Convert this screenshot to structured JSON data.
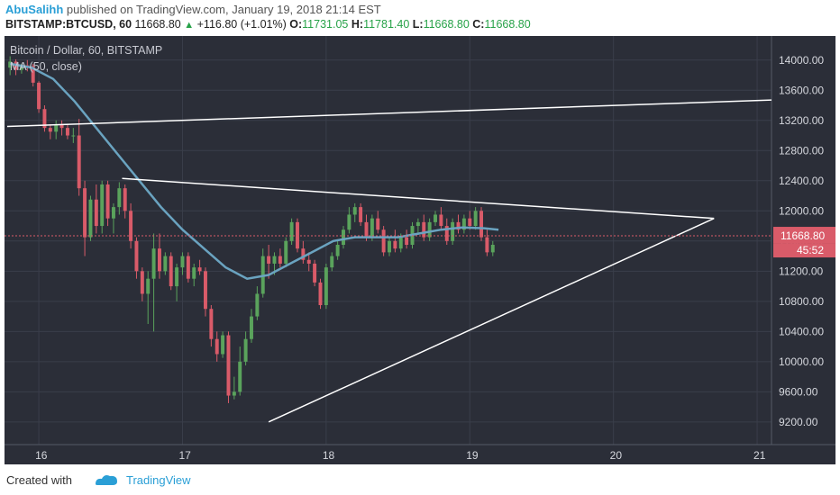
{
  "header": {
    "author": "AbuSalihh",
    "published_text": "published on TradingView.com, January 19, 2018 21:14 EST",
    "symbol": "BITSTAMP:BTCUSD, 60",
    "last": "11668.80",
    "change": "+116.80 (+1.01%)",
    "o_label": "O:",
    "o_value": "11731.05",
    "h_label": "H:",
    "h_value": "11781.40",
    "l_label": "L:",
    "l_value": "11668.80",
    "c_label": "C:",
    "c_value": "11668.80"
  },
  "legend": {
    "title": "Bitcoin / Dollar, 60, BITSTAMP",
    "indicator": "MA (50, close)"
  },
  "footer": {
    "created_with": "Created with",
    "brand": "TradingView"
  },
  "colors": {
    "background": "#2b2e38",
    "bull": "#5aa35c",
    "bear": "#d95b69",
    "ma": "#6aa3c0",
    "trendline": "#ffffff",
    "price_label": "#d95b69"
  },
  "chart_data": {
    "type": "candlestick",
    "y_axis_ticks": [
      "14000.00",
      "13600.00",
      "13200.00",
      "12800.00",
      "12400.00",
      "12000.00",
      "11600.00",
      "11200.00",
      "10800.00",
      "10400.00",
      "10000.00",
      "9600.00",
      "9200.00"
    ],
    "x_axis_ticks": [
      "16",
      "17",
      "18",
      "19",
      "20",
      "21"
    ],
    "ylim": [
      8900,
      14200
    ],
    "current_price_label": "11668.80",
    "countdown_label": "45:52",
    "candles": [
      {
        "x": 15.8,
        "o": 13900,
        "h": 14050,
        "l": 13800,
        "c": 13980
      },
      {
        "x": 15.84,
        "o": 13980,
        "h": 14010,
        "l": 13800,
        "c": 13870
      },
      {
        "x": 15.88,
        "o": 13870,
        "h": 13950,
        "l": 13820,
        "c": 13930
      },
      {
        "x": 15.92,
        "o": 13930,
        "h": 14000,
        "l": 13850,
        "c": 13920
      },
      {
        "x": 15.96,
        "o": 13920,
        "h": 13950,
        "l": 13650,
        "c": 13700
      },
      {
        "x": 16.0,
        "o": 13700,
        "h": 13720,
        "l": 13300,
        "c": 13350
      },
      {
        "x": 16.04,
        "o": 13350,
        "h": 13400,
        "l": 13050,
        "c": 13100
      },
      {
        "x": 16.08,
        "o": 13100,
        "h": 13150,
        "l": 12950,
        "c": 13050
      },
      {
        "x": 16.12,
        "o": 13050,
        "h": 13200,
        "l": 12950,
        "c": 13150
      },
      {
        "x": 16.16,
        "o": 13150,
        "h": 13200,
        "l": 13000,
        "c": 13100
      },
      {
        "x": 16.2,
        "o": 13100,
        "h": 13150,
        "l": 12950,
        "c": 13000
      },
      {
        "x": 16.24,
        "o": 13000,
        "h": 13100,
        "l": 12900,
        "c": 13000
      },
      {
        "x": 16.28,
        "o": 13000,
        "h": 13220,
        "l": 12200,
        "c": 12300
      },
      {
        "x": 16.32,
        "o": 12300,
        "h": 12400,
        "l": 11400,
        "c": 11650
      },
      {
        "x": 16.36,
        "o": 11650,
        "h": 12200,
        "l": 11600,
        "c": 12150
      },
      {
        "x": 16.4,
        "o": 12150,
        "h": 12350,
        "l": 11700,
        "c": 11800
      },
      {
        "x": 16.44,
        "o": 11800,
        "h": 12400,
        "l": 11700,
        "c": 12350
      },
      {
        "x": 16.48,
        "o": 12350,
        "h": 12400,
        "l": 11800,
        "c": 11900
      },
      {
        "x": 16.52,
        "o": 11900,
        "h": 12100,
        "l": 11700,
        "c": 12050
      },
      {
        "x": 16.56,
        "o": 12050,
        "h": 12380,
        "l": 11950,
        "c": 12300
      },
      {
        "x": 16.6,
        "o": 12300,
        "h": 12350,
        "l": 11900,
        "c": 12000
      },
      {
        "x": 16.64,
        "o": 12000,
        "h": 12100,
        "l": 11500,
        "c": 11600
      },
      {
        "x": 16.68,
        "o": 11600,
        "h": 11650,
        "l": 11100,
        "c": 11200
      },
      {
        "x": 16.72,
        "o": 11200,
        "h": 11250,
        "l": 10800,
        "c": 10900
      },
      {
        "x": 16.76,
        "o": 10900,
        "h": 11200,
        "l": 10500,
        "c": 11100
      },
      {
        "x": 16.8,
        "o": 11100,
        "h": 11700,
        "l": 10400,
        "c": 11500
      },
      {
        "x": 16.84,
        "o": 11500,
        "h": 11700,
        "l": 11100,
        "c": 11200
      },
      {
        "x": 16.88,
        "o": 11200,
        "h": 11450,
        "l": 11150,
        "c": 11400
      },
      {
        "x": 16.92,
        "o": 11400,
        "h": 11450,
        "l": 10950,
        "c": 11000
      },
      {
        "x": 16.96,
        "o": 11000,
        "h": 11300,
        "l": 10800,
        "c": 11250
      },
      {
        "x": 17.0,
        "o": 11250,
        "h": 11450,
        "l": 11150,
        "c": 11400
      },
      {
        "x": 17.04,
        "o": 11400,
        "h": 11450,
        "l": 11050,
        "c": 11100
      },
      {
        "x": 17.08,
        "o": 11100,
        "h": 11300,
        "l": 11000,
        "c": 11250
      },
      {
        "x": 17.12,
        "o": 11250,
        "h": 11350,
        "l": 11150,
        "c": 11200
      },
      {
        "x": 17.16,
        "o": 11200,
        "h": 11250,
        "l": 10600,
        "c": 10700
      },
      {
        "x": 17.2,
        "o": 10700,
        "h": 10750,
        "l": 10200,
        "c": 10300
      },
      {
        "x": 17.24,
        "o": 10300,
        "h": 10400,
        "l": 10000,
        "c": 10100
      },
      {
        "x": 17.28,
        "o": 10100,
        "h": 10400,
        "l": 10050,
        "c": 10350
      },
      {
        "x": 17.32,
        "o": 10350,
        "h": 10400,
        "l": 9450,
        "c": 9550
      },
      {
        "x": 17.36,
        "o": 9550,
        "h": 9800,
        "l": 9500,
        "c": 9600
      },
      {
        "x": 17.4,
        "o": 9600,
        "h": 10200,
        "l": 9550,
        "c": 10000
      },
      {
        "x": 17.44,
        "o": 10000,
        "h": 10400,
        "l": 9950,
        "c": 10300
      },
      {
        "x": 17.48,
        "o": 10300,
        "h": 10700,
        "l": 10250,
        "c": 10600
      },
      {
        "x": 17.52,
        "o": 10600,
        "h": 11000,
        "l": 10550,
        "c": 10900
      },
      {
        "x": 17.56,
        "o": 10900,
        "h": 11500,
        "l": 10850,
        "c": 11400
      },
      {
        "x": 17.6,
        "o": 11400,
        "h": 11550,
        "l": 11100,
        "c": 11300
      },
      {
        "x": 17.64,
        "o": 11300,
        "h": 11450,
        "l": 11150,
        "c": 11400
      },
      {
        "x": 17.68,
        "o": 11400,
        "h": 11500,
        "l": 11250,
        "c": 11300
      },
      {
        "x": 17.72,
        "o": 11300,
        "h": 11650,
        "l": 11250,
        "c": 11600
      },
      {
        "x": 17.76,
        "o": 11600,
        "h": 11900,
        "l": 11550,
        "c": 11850
      },
      {
        "x": 17.8,
        "o": 11850,
        "h": 11900,
        "l": 11450,
        "c": 11500
      },
      {
        "x": 17.84,
        "o": 11500,
        "h": 11600,
        "l": 11300,
        "c": 11350
      },
      {
        "x": 17.88,
        "o": 11350,
        "h": 11450,
        "l": 11200,
        "c": 11300
      },
      {
        "x": 17.92,
        "o": 11300,
        "h": 11350,
        "l": 11000,
        "c": 11050
      },
      {
        "x": 17.96,
        "o": 11050,
        "h": 11100,
        "l": 10700,
        "c": 10750
      },
      {
        "x": 18.0,
        "o": 10750,
        "h": 11300,
        "l": 10700,
        "c": 11250
      },
      {
        "x": 18.04,
        "o": 11250,
        "h": 11450,
        "l": 11200,
        "c": 11400
      },
      {
        "x": 18.08,
        "o": 11400,
        "h": 11600,
        "l": 11350,
        "c": 11550
      },
      {
        "x": 18.12,
        "o": 11550,
        "h": 11800,
        "l": 11500,
        "c": 11750
      },
      {
        "x": 18.16,
        "o": 11750,
        "h": 12050,
        "l": 11700,
        "c": 11950
      },
      {
        "x": 18.2,
        "o": 11950,
        "h": 12100,
        "l": 11850,
        "c": 12050
      },
      {
        "x": 18.24,
        "o": 12050,
        "h": 12100,
        "l": 11800,
        "c": 11850
      },
      {
        "x": 18.28,
        "o": 11850,
        "h": 11950,
        "l": 11600,
        "c": 11650
      },
      {
        "x": 18.32,
        "o": 11650,
        "h": 11950,
        "l": 11600,
        "c": 11900
      },
      {
        "x": 18.36,
        "o": 11900,
        "h": 12000,
        "l": 11700,
        "c": 11750
      },
      {
        "x": 18.4,
        "o": 11750,
        "h": 11800,
        "l": 11400,
        "c": 11450
      },
      {
        "x": 18.44,
        "o": 11450,
        "h": 11650,
        "l": 11400,
        "c": 11600
      },
      {
        "x": 18.48,
        "o": 11600,
        "h": 11750,
        "l": 11450,
        "c": 11500
      },
      {
        "x": 18.52,
        "o": 11500,
        "h": 11700,
        "l": 11450,
        "c": 11650
      },
      {
        "x": 18.56,
        "o": 11650,
        "h": 11750,
        "l": 11500,
        "c": 11550
      },
      {
        "x": 18.6,
        "o": 11550,
        "h": 11850,
        "l": 11500,
        "c": 11800
      },
      {
        "x": 18.64,
        "o": 11800,
        "h": 11900,
        "l": 11700,
        "c": 11850
      },
      {
        "x": 18.68,
        "o": 11850,
        "h": 11950,
        "l": 11600,
        "c": 11650
      },
      {
        "x": 18.72,
        "o": 11650,
        "h": 11900,
        "l": 11600,
        "c": 11850
      },
      {
        "x": 18.76,
        "o": 11850,
        "h": 12000,
        "l": 11800,
        "c": 11950
      },
      {
        "x": 18.8,
        "o": 11950,
        "h": 12050,
        "l": 11750,
        "c": 11800
      },
      {
        "x": 18.84,
        "o": 11800,
        "h": 11900,
        "l": 11550,
        "c": 11600
      },
      {
        "x": 18.88,
        "o": 11600,
        "h": 11900,
        "l": 11550,
        "c": 11850
      },
      {
        "x": 18.92,
        "o": 11850,
        "h": 11950,
        "l": 11700,
        "c": 11750
      },
      {
        "x": 18.96,
        "o": 11750,
        "h": 11950,
        "l": 11700,
        "c": 11900
      },
      {
        "x": 19.0,
        "o": 11900,
        "h": 12000,
        "l": 11750,
        "c": 11800
      },
      {
        "x": 19.04,
        "o": 11800,
        "h": 12050,
        "l": 11750,
        "c": 12000
      },
      {
        "x": 19.08,
        "o": 12000,
        "h": 12050,
        "l": 11600,
        "c": 11650
      },
      {
        "x": 19.12,
        "o": 11650,
        "h": 11750,
        "l": 11400,
        "c": 11450
      },
      {
        "x": 19.16,
        "o": 11450,
        "h": 11600,
        "l": 11400,
        "c": 11550
      }
    ],
    "ma_series_name": "MA (50, close)",
    "ma": [
      {
        "x": 15.8,
        "y": 13950
      },
      {
        "x": 15.95,
        "y": 13900
      },
      {
        "x": 16.1,
        "y": 13750
      },
      {
        "x": 16.25,
        "y": 13450
      },
      {
        "x": 16.4,
        "y": 13100
      },
      {
        "x": 16.55,
        "y": 12750
      },
      {
        "x": 16.7,
        "y": 12400
      },
      {
        "x": 16.85,
        "y": 12050
      },
      {
        "x": 17.0,
        "y": 11750
      },
      {
        "x": 17.15,
        "y": 11500
      },
      {
        "x": 17.3,
        "y": 11250
      },
      {
        "x": 17.45,
        "y": 11100
      },
      {
        "x": 17.6,
        "y": 11150
      },
      {
        "x": 17.75,
        "y": 11300
      },
      {
        "x": 17.9,
        "y": 11450
      },
      {
        "x": 18.05,
        "y": 11600
      },
      {
        "x": 18.2,
        "y": 11650
      },
      {
        "x": 18.35,
        "y": 11650
      },
      {
        "x": 18.5,
        "y": 11650
      },
      {
        "x": 18.65,
        "y": 11700
      },
      {
        "x": 18.8,
        "y": 11750
      },
      {
        "x": 18.95,
        "y": 11780
      },
      {
        "x": 19.1,
        "y": 11770
      },
      {
        "x": 19.2,
        "y": 11750
      }
    ],
    "trendlines": [
      {
        "name": "upper-channel-line",
        "x1": 15.78,
        "y1": 13120,
        "x2": 21.1,
        "y2": 13470
      },
      {
        "name": "descending-resistance-line",
        "x1": 16.58,
        "y1": 12430,
        "x2": 20.7,
        "y2": 11900
      },
      {
        "name": "ascending-support-line",
        "x1": 17.6,
        "y1": 9200,
        "x2": 20.7,
        "y2": 11900
      }
    ]
  }
}
